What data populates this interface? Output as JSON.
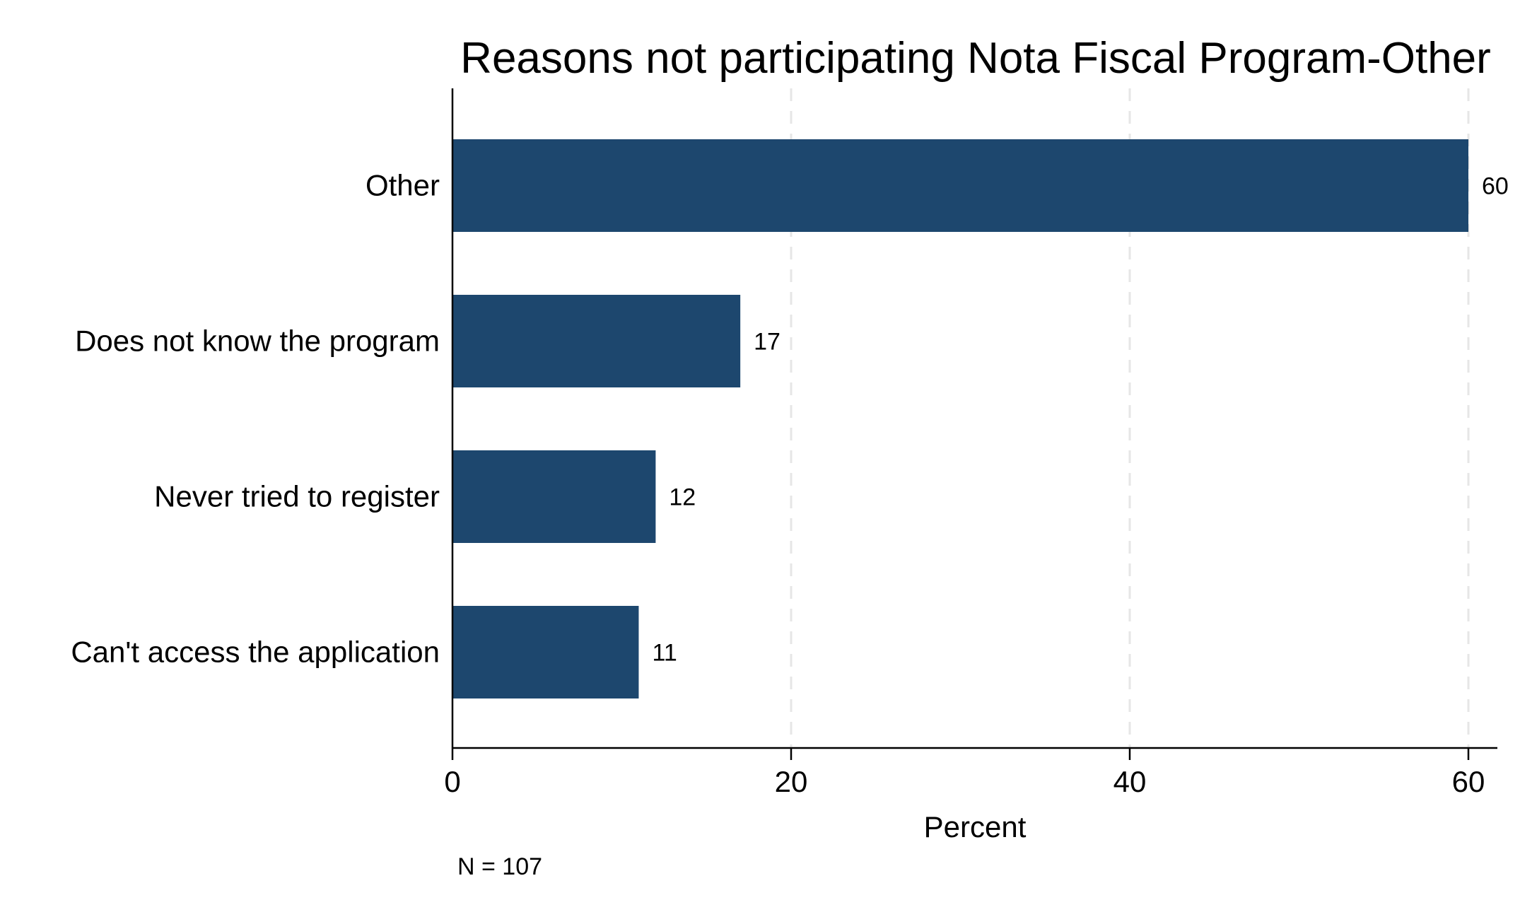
{
  "chart_data": {
    "type": "bar",
    "orientation": "horizontal",
    "title": "Reasons not participating Nota Fiscal Program-Other",
    "categories": [
      "Other",
      "Does not know the program",
      "Never tried to register",
      "Can't access the application"
    ],
    "values": [
      60,
      17,
      12,
      11
    ],
    "data_labels": [
      "60",
      "17",
      "12",
      "11"
    ],
    "xlabel": "Percent",
    "ylabel": "",
    "xlim": [
      0,
      62
    ],
    "xticks": [
      0,
      20,
      40,
      60
    ],
    "xtick_labels": [
      "0",
      "20",
      "40",
      "60"
    ],
    "grid": "vertical dashed",
    "bar_color": "#1d476e",
    "grid_color": "#e6e6e6",
    "note": "N = 107"
  }
}
